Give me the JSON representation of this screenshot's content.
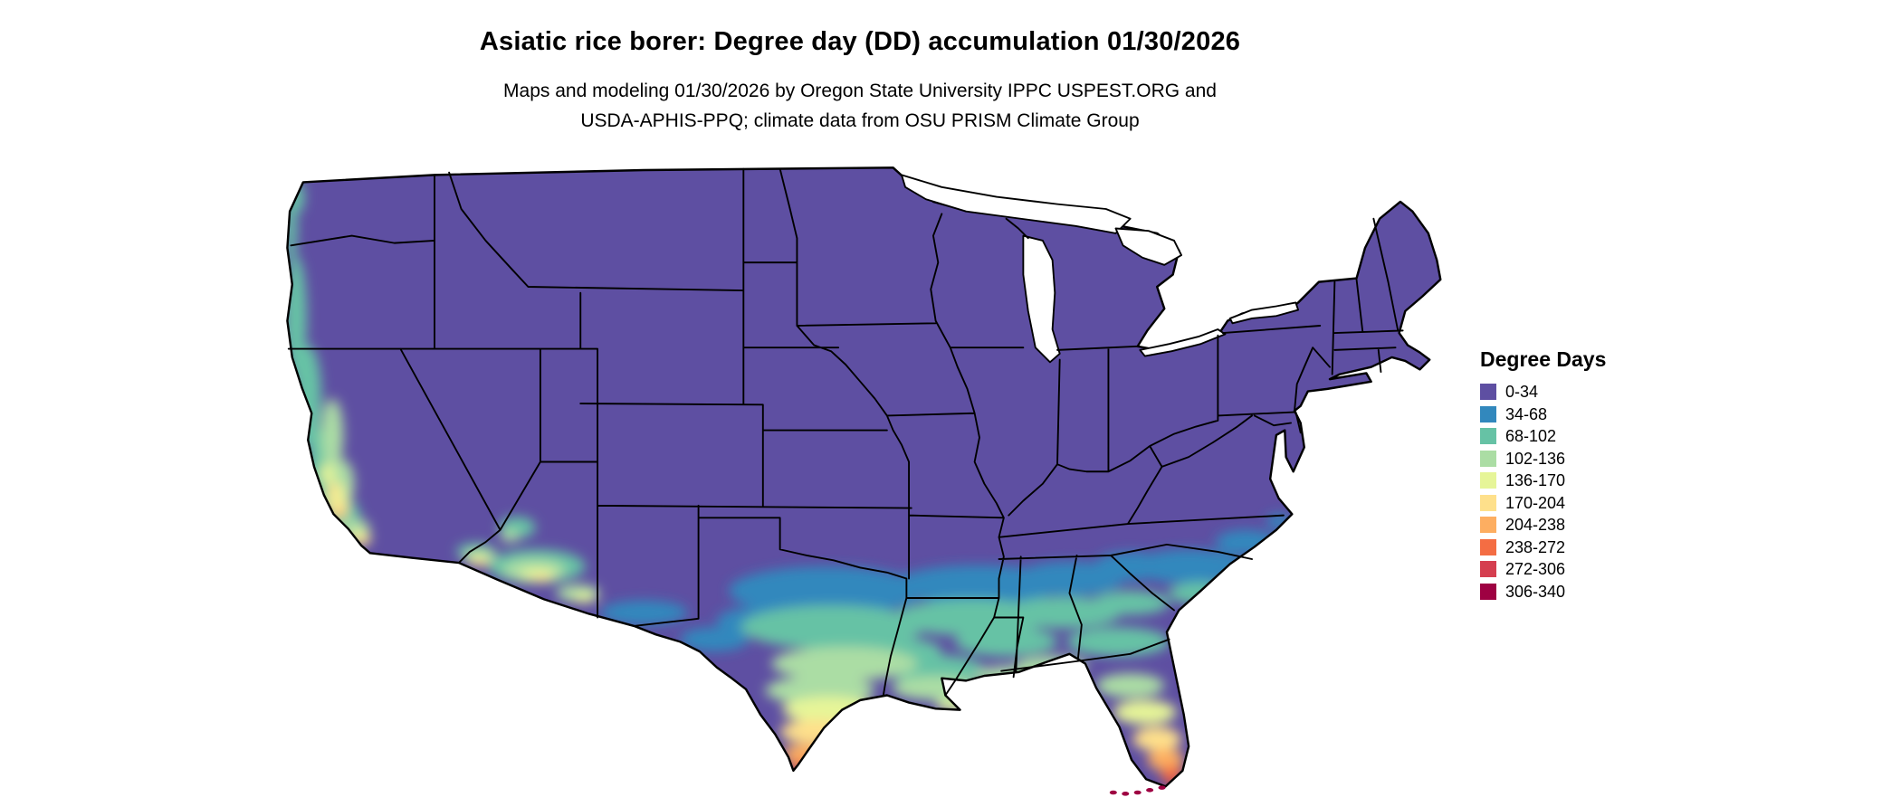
{
  "header": {
    "title": "Asiatic rice borer: Degree day (DD) accumulation 01/30/2026",
    "subtitle_line1": "Maps and modeling 01/30/2026 by Oregon State University IPPC USPEST.ORG and",
    "subtitle_line2": "USDA-APHIS-PPQ; climate data from OSU PRISM Climate Group"
  },
  "legend": {
    "title": "Degree Days",
    "items": [
      {
        "label": "0-34",
        "color": "#5e4fa2"
      },
      {
        "label": "34-68",
        "color": "#3288bd"
      },
      {
        "label": "68-102",
        "color": "#66c2a5"
      },
      {
        "label": "102-136",
        "color": "#abdda4"
      },
      {
        "label": "136-170",
        "color": "#e6f598"
      },
      {
        "label": "170-204",
        "color": "#fee08b"
      },
      {
        "label": "204-238",
        "color": "#fdae61"
      },
      {
        "label": "238-272",
        "color": "#f46d43"
      },
      {
        "label": "272-306",
        "color": "#d53e4f"
      },
      {
        "label": "306-340",
        "color": "#9e0142"
      }
    ]
  },
  "map": {
    "description": "Contiguous United States map shaded by accumulated degree days; low accumulation (purple) across the north and interior, increasing through blue, green and yellow along the southern tier to orange and red in far south Texas and south Florida",
    "base_color": "#5e4fa2",
    "water_color": "#ffffff",
    "border_color": "#000000",
    "background_color": "#ffffff"
  }
}
